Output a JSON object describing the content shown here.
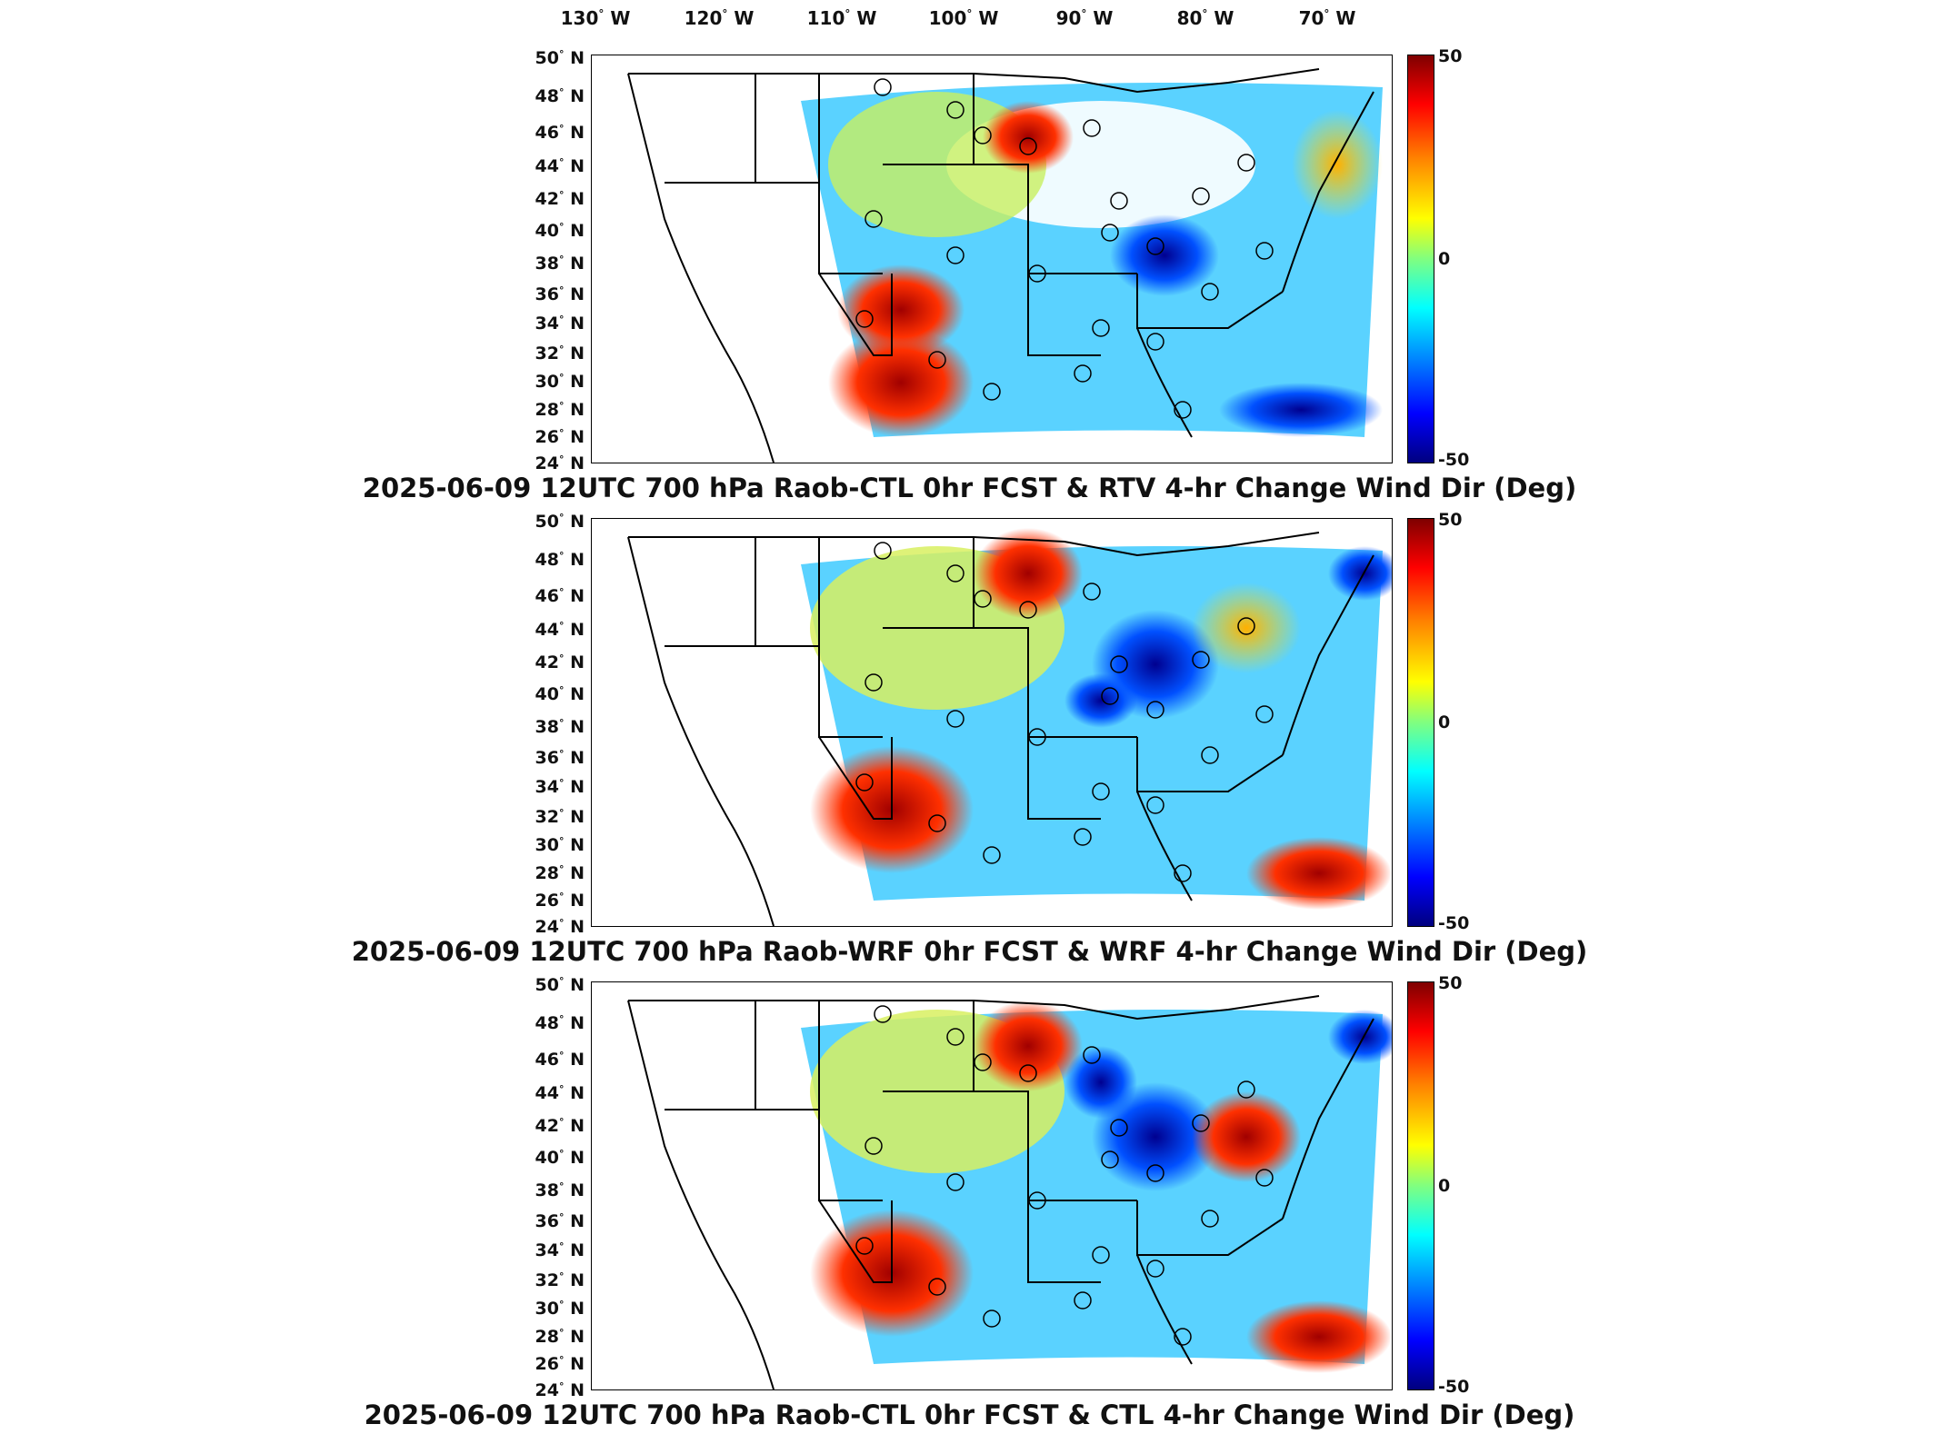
{
  "longitude_labels": [
    {
      "deg": "130",
      "hemi": "W"
    },
    {
      "deg": "120",
      "hemi": "W"
    },
    {
      "deg": "110",
      "hemi": "W"
    },
    {
      "deg": "100",
      "hemi": "W"
    },
    {
      "deg": "90",
      "hemi": "W"
    },
    {
      "deg": "80",
      "hemi": "W"
    },
    {
      "deg": "70",
      "hemi": "W"
    }
  ],
  "latitude_labels": [
    {
      "deg": "50",
      "hemi": "N"
    },
    {
      "deg": "48",
      "hemi": "N"
    },
    {
      "deg": "46",
      "hemi": "N"
    },
    {
      "deg": "44",
      "hemi": "N"
    },
    {
      "deg": "42",
      "hemi": "N"
    },
    {
      "deg": "40",
      "hemi": "N"
    },
    {
      "deg": "38",
      "hemi": "N"
    },
    {
      "deg": "36",
      "hemi": "N"
    },
    {
      "deg": "34",
      "hemi": "N"
    },
    {
      "deg": "32",
      "hemi": "N"
    },
    {
      "deg": "30",
      "hemi": "N"
    },
    {
      "deg": "28",
      "hemi": "N"
    },
    {
      "deg": "26",
      "hemi": "N"
    },
    {
      "deg": "24",
      "hemi": "N"
    }
  ],
  "colorbar": {
    "max": "50",
    "mid": "0",
    "min": "-50",
    "colormap": "jet"
  },
  "panels": [
    {
      "title": "2025-06-09 12UTC 700 hPa Raob-CTL 0hr FCST & RTV 4-hr Change Wind Dir (Deg)"
    },
    {
      "title": "2025-06-09 12UTC 700 hPa Raob-WRF 0hr FCST & WRF 4-hr Change Wind Dir (Deg)"
    },
    {
      "title": "2025-06-09 12UTC 700 hPa Raob-CTL 0hr FCST & CTL 4-hr Change Wind Dir (Deg)"
    }
  ],
  "colors": {
    "frame": "#000000",
    "background": "#ffffff",
    "domain_fill": "#5ad2ff"
  }
}
